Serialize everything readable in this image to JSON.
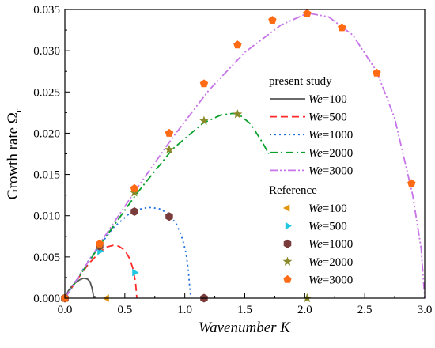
{
  "chart_data": {
    "type": "line",
    "xlabel": "Wavenumber K",
    "xlabel_main": "Wavenumber ",
    "xlabel_var": "K",
    "ylabel": "Growth rate Ωr",
    "ylabel_main": "Growth rate Ω",
    "ylabel_sub": "r",
    "xlim": [
      0.0,
      3.0
    ],
    "ylim": [
      0.0,
      0.035
    ],
    "xticks": [
      "0.0",
      "0.5",
      "1.0",
      "1.5",
      "2.0",
      "2.5",
      "3.0"
    ],
    "yticks": [
      "0.000",
      "0.005",
      "0.010",
      "0.015",
      "0.020",
      "0.025",
      "0.030",
      "0.035"
    ],
    "legend_position": "right",
    "legend_groups": [
      {
        "title": "present study",
        "var": "We",
        "entries": [
          "=100",
          "=500",
          "=1000",
          "=2000",
          "=3000"
        ]
      },
      {
        "title": "Reference",
        "var": "We",
        "entries": [
          "=100",
          "=500",
          "=1000",
          "=2000",
          "=3000"
        ]
      }
    ],
    "series": [
      {
        "name": "We=100",
        "color": "#555555",
        "dash": "",
        "x": [
          0,
          0.03,
          0.06,
          0.09,
          0.12,
          0.15,
          0.17,
          0.19,
          0.21,
          0.225,
          0.235,
          0.24
        ],
        "y": [
          0,
          0.0009,
          0.0015,
          0.0019,
          0.0022,
          0.0024,
          0.0024,
          0.0023,
          0.002,
          0.0013,
          0.0006,
          0
        ]
      },
      {
        "name": "We=500",
        "color": "#ff2b2b",
        "dash": "9,5",
        "x": [
          0,
          0.1,
          0.2,
          0.3,
          0.35,
          0.4,
          0.45,
          0.5,
          0.54,
          0.57,
          0.59,
          0.6
        ],
        "y": [
          0,
          0.0022,
          0.0042,
          0.0057,
          0.0062,
          0.0064,
          0.0063,
          0.0058,
          0.0048,
          0.0035,
          0.0018,
          0
        ]
      },
      {
        "name": "We=1000",
        "color": "#1e6fe0",
        "dash": "2,4",
        "x": [
          0,
          0.2,
          0.4,
          0.55,
          0.65,
          0.72,
          0.8,
          0.87,
          0.93,
          0.98,
          1.01,
          1.03,
          1.04,
          1.05
        ],
        "y": [
          0,
          0.0046,
          0.0085,
          0.0104,
          0.0109,
          0.011,
          0.0108,
          0.0101,
          0.009,
          0.0072,
          0.0055,
          0.0033,
          0.0015,
          0
        ]
      },
      {
        "name": "We=2000",
        "color": "#0aa02c",
        "dash": "10,4,2,4",
        "x": [
          0,
          0.3,
          0.6,
          0.9,
          1.15,
          1.3,
          1.4,
          1.45,
          1.55,
          1.65,
          1.7
        ],
        "y": [
          0,
          0.0066,
          0.0127,
          0.0181,
          0.0212,
          0.0222,
          0.0224,
          0.0223,
          0.0211,
          0.0188,
          0.0175
        ]
      },
      {
        "name": "We=3000",
        "color": "#c774e8",
        "dash": "10,3,2,3,2,3",
        "x": [
          0,
          0.3,
          0.6,
          0.9,
          1.2,
          1.5,
          1.8,
          2.0,
          2.05,
          2.2,
          2.4,
          2.6,
          2.75,
          2.9,
          2.97,
          3.0
        ],
        "y": [
          0,
          0.0068,
          0.0133,
          0.0195,
          0.0252,
          0.0298,
          0.0331,
          0.0344,
          0.0345,
          0.0341,
          0.0319,
          0.0275,
          0.0218,
          0.0125,
          0.006,
          0
        ]
      }
    ],
    "reference": [
      {
        "name": "We=100",
        "marker": "triangle-left",
        "color": "#e2960f",
        "points": [
          [
            0.0,
            0.0
          ],
          [
            0.35,
            0.0
          ]
        ]
      },
      {
        "name": "We=500",
        "marker": "triangle-right",
        "color": "#1ec8e0",
        "points": [
          [
            0.0,
            0.0
          ],
          [
            0.29,
            0.0057
          ],
          [
            0.58,
            0.0031
          ]
        ]
      },
      {
        "name": "We=1000",
        "marker": "hexagon",
        "color": "#7a3b3b",
        "points": [
          [
            0.0,
            0.0
          ],
          [
            0.29,
            0.0063
          ],
          [
            0.58,
            0.0105
          ],
          [
            0.87,
            0.0099
          ],
          [
            1.16,
            0.0
          ]
        ]
      },
      {
        "name": "We=2000",
        "marker": "star",
        "color": "#8a8a2a",
        "points": [
          [
            0.0,
            0.0
          ],
          [
            0.29,
            0.0064
          ],
          [
            0.58,
            0.0128
          ],
          [
            0.87,
            0.018
          ],
          [
            1.16,
            0.0215
          ],
          [
            1.44,
            0.0223
          ],
          [
            2.02,
            0.0
          ]
        ]
      },
      {
        "name": "We=3000",
        "marker": "pentagon",
        "color": "#ff6a14",
        "points": [
          [
            0.0,
            0.0
          ],
          [
            0.29,
            0.0066
          ],
          [
            0.58,
            0.0133
          ],
          [
            0.87,
            0.02
          ],
          [
            1.16,
            0.026
          ],
          [
            1.44,
            0.0307
          ],
          [
            1.73,
            0.0337
          ],
          [
            2.02,
            0.0345
          ],
          [
            2.31,
            0.0328
          ],
          [
            2.6,
            0.0273
          ],
          [
            2.89,
            0.0139
          ]
        ]
      }
    ]
  }
}
